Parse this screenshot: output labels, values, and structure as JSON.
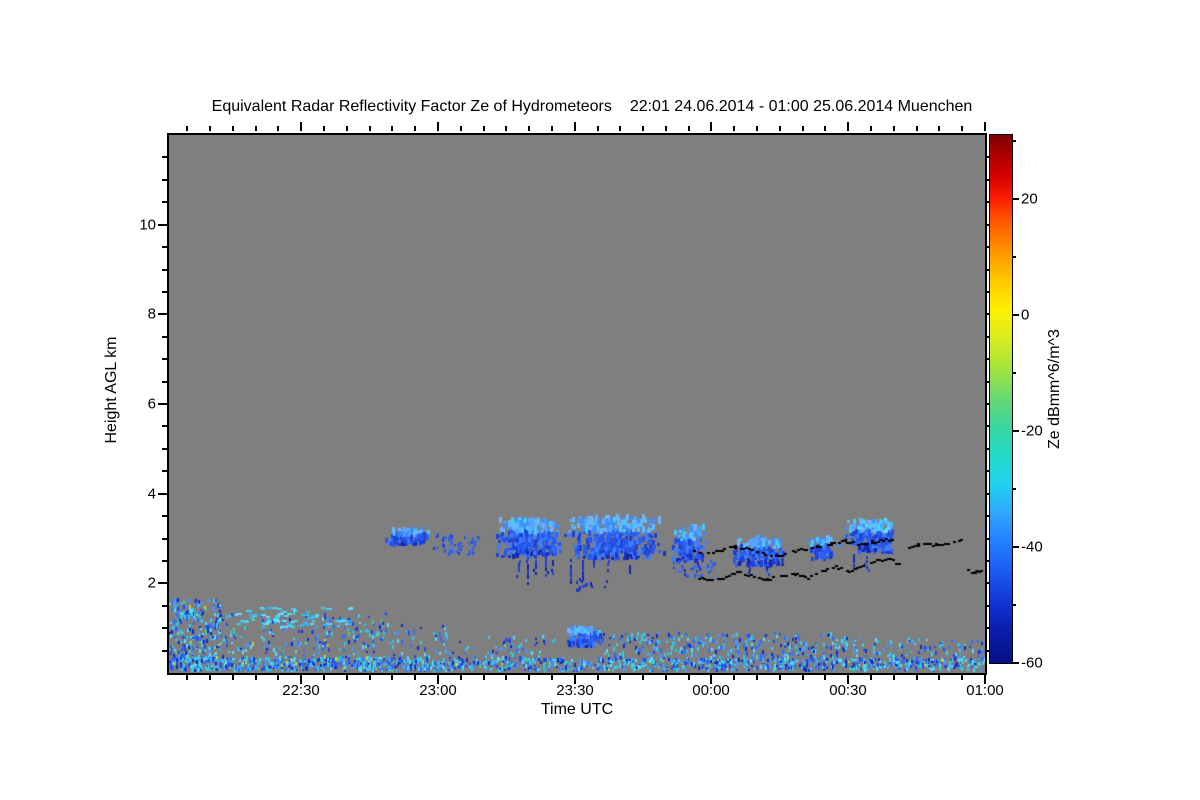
{
  "chart_data": {
    "type": "heatmap",
    "title": {
      "main": "Equivalent Radar Reflectivity Factor Ze of Hydrometeors",
      "range": "22:01 24.06.2014 - 01:00 25.06.2014 Muenchen"
    },
    "station": "Muenchen",
    "time_start": "22:01 24.06.2014",
    "time_end": "01:00 25.06.2014",
    "background_color": "#7f7f7f",
    "x_axis": {
      "label": "Time UTC",
      "range_minutes": [
        0,
        179
      ],
      "major_ticks": [
        {
          "t": 29,
          "label": "22:30"
        },
        {
          "t": 59,
          "label": "23:00"
        },
        {
          "t": 89,
          "label": "23:30"
        },
        {
          "t": 119,
          "label": "00:00"
        },
        {
          "t": 149,
          "label": "00:30"
        },
        {
          "t": 179,
          "label": "01:00"
        }
      ],
      "minor_start": 4,
      "minor_step": 5
    },
    "y_axis": {
      "label": "Height AGL km",
      "range_km": [
        0,
        12
      ],
      "major_ticks": [
        2,
        4,
        6,
        8,
        10
      ],
      "minor_step": 0.5
    },
    "colorbar": {
      "label": "Ze dBmm^6/m^3",
      "range": [
        -60,
        31
      ],
      "major_ticks": [
        20,
        0,
        -20,
        -40,
        -60
      ],
      "minor_ticks": [
        30,
        10,
        -10,
        -30,
        -50
      ],
      "gradient": [
        [
          31,
          "#7f0000"
        ],
        [
          28,
          "#a80000"
        ],
        [
          24,
          "#d60000"
        ],
        [
          20,
          "#fa1e00"
        ],
        [
          16,
          "#ff5a00"
        ],
        [
          11,
          "#ff9400"
        ],
        [
          6,
          "#ffc800"
        ],
        [
          1,
          "#fef000"
        ],
        [
          -4,
          "#d9ec1e"
        ],
        [
          -9,
          "#a8e43c"
        ],
        [
          -14,
          "#6bd96e"
        ],
        [
          -19,
          "#3cd69e"
        ],
        [
          -24,
          "#25dac6"
        ],
        [
          -29,
          "#20d2ee"
        ],
        [
          -34,
          "#2fa8fc"
        ],
        [
          -39,
          "#2381ff"
        ],
        [
          -44,
          "#1b5cf2"
        ],
        [
          -49,
          "#1238d8"
        ],
        [
          -54,
          "#0a1fae"
        ],
        [
          -60,
          "#051083"
        ]
      ]
    },
    "palettes": {
      "surface": [
        "#2247ee",
        "#2f6bff",
        "#4a97ff",
        "#27c8f0",
        "#58dcff",
        "#0e2cc8",
        "#35d4e8"
      ],
      "rare": [
        "#43cf7a",
        "#b9da2e"
      ],
      "cloudcore": [
        "#2a62f2",
        "#1e42d6",
        "#3c7efc",
        "#2a55e8"
      ],
      "cloudtop": [
        "#55a4ff",
        "#6cb4ff",
        "#3f8efc",
        "#49c9f8"
      ],
      "cyan": [
        "#42d2f5",
        "#63dcff",
        "#2fb9f2"
      ],
      "streak": [
        "#1a2fc0",
        "#1426a6",
        "#2340dd"
      ],
      "trace": "#000000"
    },
    "echo_regions": [
      {
        "id": "surface-band-1",
        "t": [
          0,
          55
        ],
        "h": [
          0.02,
          0.3
        ],
        "n": 560,
        "mode": "speckle",
        "pal": "surface",
        "rare": 0.04
      },
      {
        "id": "surface-band-2",
        "t": [
          55,
          100
        ],
        "h": [
          0.02,
          0.28
        ],
        "n": 300,
        "mode": "speckle",
        "pal": "surface",
        "rare": 0.02
      },
      {
        "id": "surface-band-3",
        "t": [
          100,
          145
        ],
        "h": [
          0.02,
          0.28
        ],
        "n": 280,
        "mode": "speckle",
        "pal": "surface",
        "rare": 0.02
      },
      {
        "id": "surface-band-4",
        "t": [
          145,
          179
        ],
        "h": [
          0.02,
          0.28
        ],
        "n": 230,
        "mode": "speckle",
        "pal": "surface",
        "rare": 0.02
      },
      {
        "id": "left-plume",
        "t": [
          0,
          11
        ],
        "h": [
          0.25,
          1.6
        ],
        "n": 240,
        "mode": "speckle",
        "pal": "surface",
        "rare": 0.05
      },
      {
        "id": "left-fan",
        "t": [
          2,
          48
        ],
        "h": [
          0.28,
          1.3
        ],
        "n": 220,
        "mode": "speckle",
        "pal": "surface",
        "rare": 0.05
      },
      {
        "id": "cyan-arcs",
        "t": [
          14,
          40
        ],
        "h": [
          1.0,
          1.45
        ],
        "n": 70,
        "mode": "hdash",
        "pal": "cyan"
      },
      {
        "id": "mid-sparse-1",
        "t": [
          40,
          64
        ],
        "h": [
          0.3,
          1.05
        ],
        "n": 80,
        "mode": "speckle",
        "pal": "surface"
      },
      {
        "id": "mid-sparse-2",
        "t": [
          64,
          86
        ],
        "h": [
          0.25,
          0.8
        ],
        "n": 60,
        "mode": "speckle",
        "pal": "surface"
      },
      {
        "id": "low-blob-2330",
        "t": [
          86,
          95
        ],
        "h": [
          0.55,
          0.95
        ],
        "n": 130,
        "mode": "cloud",
        "pal": "cloud"
      },
      {
        "id": "mid-sparse-3",
        "t": [
          95,
          122
        ],
        "h": [
          0.25,
          0.85
        ],
        "n": 150,
        "mode": "speckle",
        "pal": "surface"
      },
      {
        "id": "mid-sparse-4",
        "t": [
          122,
          147
        ],
        "h": [
          0.25,
          0.85
        ],
        "n": 150,
        "mode": "speckle",
        "pal": "surface"
      },
      {
        "id": "mid-sparse-5",
        "t": [
          147,
          179
        ],
        "h": [
          0.25,
          0.75
        ],
        "n": 110,
        "mode": "speckle",
        "pal": "surface"
      },
      {
        "id": "cloud-a",
        "t": [
          47,
          57.5
        ],
        "h": [
          2.82,
          3.14
        ],
        "n": 170,
        "mode": "cloud",
        "pal": "cloud"
      },
      {
        "id": "cloud-bits",
        "t": [
          58,
          68
        ],
        "h": [
          2.6,
          3.05
        ],
        "n": 55,
        "mode": "speckle",
        "pal": "cloudcore"
      },
      {
        "id": "cloud-b",
        "t": [
          71,
          86
        ],
        "h": [
          2.55,
          3.35
        ],
        "n": 380,
        "mode": "cloud",
        "pal": "cloud"
      },
      {
        "id": "cloud-c",
        "t": [
          86,
          109
        ],
        "h": [
          2.5,
          3.42
        ],
        "n": 430,
        "mode": "cloud",
        "pal": "cloud"
      },
      {
        "id": "cloud-d",
        "t": [
          110,
          118
        ],
        "h": [
          2.45,
          3.2
        ],
        "n": 150,
        "mode": "cloud",
        "pal": "cloud"
      },
      {
        "id": "cloud-e",
        "t": [
          123,
          135
        ],
        "h": [
          2.35,
          2.95
        ],
        "n": 210,
        "mode": "cloud",
        "pal": "cloud"
      },
      {
        "id": "cloud-f",
        "t": [
          140,
          147
        ],
        "h": [
          2.5,
          2.95
        ],
        "n": 90,
        "mode": "cloud",
        "pal": "cloud"
      },
      {
        "id": "cloud-g",
        "t": [
          148,
          159
        ],
        "h": [
          2.65,
          3.35
        ],
        "n": 260,
        "mode": "cloud",
        "pal": "cloud",
        "cyan": true
      },
      {
        "id": "stray-deep-dots",
        "t": [
          88,
          96
        ],
        "h": [
          1.78,
          2.1
        ],
        "n": 14,
        "mode": "speckle",
        "pal": "streak"
      },
      {
        "id": "under-dots",
        "t": [
          110,
          120
        ],
        "h": [
          2.1,
          2.45
        ],
        "n": 40,
        "mode": "speckle",
        "pal": "cloudcore"
      }
    ],
    "fall_streaks": [
      [
        76.5,
        2.6,
        2.1
      ],
      [
        78.5,
        2.65,
        1.98
      ],
      [
        80.2,
        2.6,
        2.2
      ],
      [
        82.5,
        2.62,
        2.05
      ],
      [
        84,
        2.6,
        2.25
      ],
      [
        88,
        2.55,
        2.0
      ],
      [
        90.5,
        2.6,
        1.95
      ],
      [
        93,
        2.55,
        2.15
      ],
      [
        96,
        2.6,
        2.3
      ],
      [
        101,
        2.55,
        2.25
      ],
      [
        113,
        2.52,
        2.2
      ],
      [
        116,
        2.55,
        2.3
      ],
      [
        127,
        2.42,
        2.15
      ],
      [
        131,
        2.45,
        2.2
      ],
      [
        150,
        2.65,
        2.35
      ],
      [
        153,
        2.6,
        2.3
      ]
    ],
    "black_traces": [
      {
        "id": "cloud-base-upper",
        "points": [
          [
            115,
            2.72
          ],
          [
            118,
            2.68
          ],
          [
            121,
            2.76
          ],
          [
            124,
            2.84
          ],
          [
            127,
            2.78
          ],
          [
            130,
            2.7
          ],
          [
            133,
            2.62
          ],
          [
            136,
            2.7
          ],
          [
            139,
            2.78
          ],
          [
            142,
            2.84
          ],
          [
            145,
            2.9
          ],
          [
            148,
            2.96
          ],
          [
            151,
            2.88
          ],
          [
            154,
            2.94
          ],
          [
            157,
            3.0
          ],
          [
            159,
            2.95
          ]
        ]
      },
      {
        "id": "cloud-base-lower",
        "points": [
          [
            116,
            2.14
          ],
          [
            119,
            2.08
          ],
          [
            122,
            2.16
          ],
          [
            125,
            2.26
          ],
          [
            128,
            2.18
          ],
          [
            131,
            2.1
          ],
          [
            134,
            2.16
          ],
          [
            137,
            2.24
          ],
          [
            140,
            2.14
          ],
          [
            143,
            2.28
          ],
          [
            146,
            2.38
          ],
          [
            149,
            2.3
          ],
          [
            152,
            2.42
          ],
          [
            155,
            2.52
          ],
          [
            158,
            2.55
          ],
          [
            160,
            2.45
          ]
        ]
      },
      {
        "id": "cloud-base-right",
        "points": [
          [
            162,
            2.82
          ],
          [
            164,
            2.88
          ],
          [
            166,
            2.92
          ],
          [
            168,
            2.86
          ],
          [
            170,
            2.9
          ],
          [
            172,
            2.96
          ],
          [
            173.5,
            3.0
          ]
        ]
      },
      {
        "id": "tail-dots",
        "points": [
          [
            175,
            2.32
          ],
          [
            176.5,
            2.26
          ],
          [
            178,
            2.3
          ]
        ]
      }
    ]
  }
}
